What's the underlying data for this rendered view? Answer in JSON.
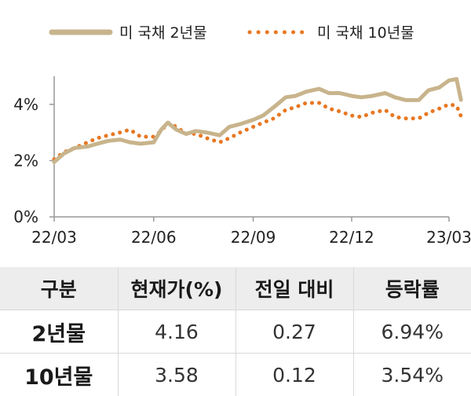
{
  "chart_data": {
    "type": "line",
    "x_ticks": [
      "22/03",
      "22/06",
      "22/09",
      "22/12",
      "23/03"
    ],
    "y_ticks": [
      "0%",
      "2%",
      "4%"
    ],
    "ylim": [
      0,
      5
    ],
    "legend_position": "top",
    "grid": false,
    "series": [
      {
        "name": "미 국채 2년물",
        "style": "solid",
        "color": "#c8b48c",
        "x": [
          "2022-03-01",
          "2022-03-10",
          "2022-03-20",
          "2022-04-01",
          "2022-04-10",
          "2022-04-20",
          "2022-05-01",
          "2022-05-10",
          "2022-05-20",
          "2022-06-01",
          "2022-06-08",
          "2022-06-14",
          "2022-06-22",
          "2022-07-01",
          "2022-07-10",
          "2022-07-20",
          "2022-08-01",
          "2022-08-10",
          "2022-08-20",
          "2022-09-01",
          "2022-09-10",
          "2022-09-20",
          "2022-10-01",
          "2022-10-10",
          "2022-10-20",
          "2022-11-01",
          "2022-11-10",
          "2022-11-20",
          "2022-12-01",
          "2022-12-10",
          "2022-12-20",
          "2023-01-01",
          "2023-01-10",
          "2023-01-20",
          "2023-02-01",
          "2023-02-10",
          "2023-02-20",
          "2023-03-01",
          "2023-03-08",
          "2023-03-12"
        ],
        "values": [
          1.95,
          2.25,
          2.45,
          2.5,
          2.6,
          2.7,
          2.75,
          2.65,
          2.6,
          2.65,
          3.1,
          3.35,
          3.1,
          2.95,
          3.05,
          3.0,
          2.9,
          3.2,
          3.3,
          3.45,
          3.6,
          3.9,
          4.25,
          4.3,
          4.45,
          4.55,
          4.4,
          4.4,
          4.3,
          4.25,
          4.3,
          4.4,
          4.25,
          4.15,
          4.15,
          4.5,
          4.6,
          4.85,
          4.9,
          4.16
        ]
      },
      {
        "name": "미 국채 10년물",
        "style": "dotted",
        "color": "#e87722",
        "x": [
          "2022-03-01",
          "2022-03-10",
          "2022-03-20",
          "2022-04-01",
          "2022-04-10",
          "2022-04-20",
          "2022-05-01",
          "2022-05-10",
          "2022-05-20",
          "2022-06-01",
          "2022-06-08",
          "2022-06-14",
          "2022-06-22",
          "2022-07-01",
          "2022-07-10",
          "2022-07-20",
          "2022-08-01",
          "2022-08-10",
          "2022-08-20",
          "2022-09-01",
          "2022-09-10",
          "2022-09-20",
          "2022-10-01",
          "2022-10-10",
          "2022-10-20",
          "2022-11-01",
          "2022-11-10",
          "2022-11-20",
          "2022-12-01",
          "2022-12-10",
          "2022-12-20",
          "2023-01-01",
          "2023-01-10",
          "2023-01-20",
          "2023-02-01",
          "2023-02-10",
          "2023-02-20",
          "2023-03-01",
          "2023-03-08",
          "2023-03-12"
        ],
        "values": [
          2.05,
          2.3,
          2.45,
          2.65,
          2.8,
          2.9,
          3.0,
          3.1,
          2.85,
          2.85,
          3.05,
          3.35,
          3.2,
          2.95,
          2.95,
          2.8,
          2.65,
          2.8,
          3.0,
          3.2,
          3.35,
          3.5,
          3.8,
          3.9,
          4.05,
          4.05,
          3.85,
          3.75,
          3.6,
          3.55,
          3.7,
          3.8,
          3.55,
          3.5,
          3.5,
          3.7,
          3.85,
          4.0,
          3.95,
          3.58
        ]
      }
    ]
  },
  "legend": {
    "item1": "미 국채 2년물",
    "item2": "미 국채 10년물"
  },
  "table": {
    "headers": [
      "구분",
      "현재가(%)",
      "전일 대비",
      "등락률"
    ],
    "rows": [
      {
        "label": "2년물",
        "price": "4.16",
        "change": "0.27",
        "rate": "6.94%"
      },
      {
        "label": "10년물",
        "price": "3.58",
        "change": "0.12",
        "rate": "3.54%"
      }
    ]
  }
}
